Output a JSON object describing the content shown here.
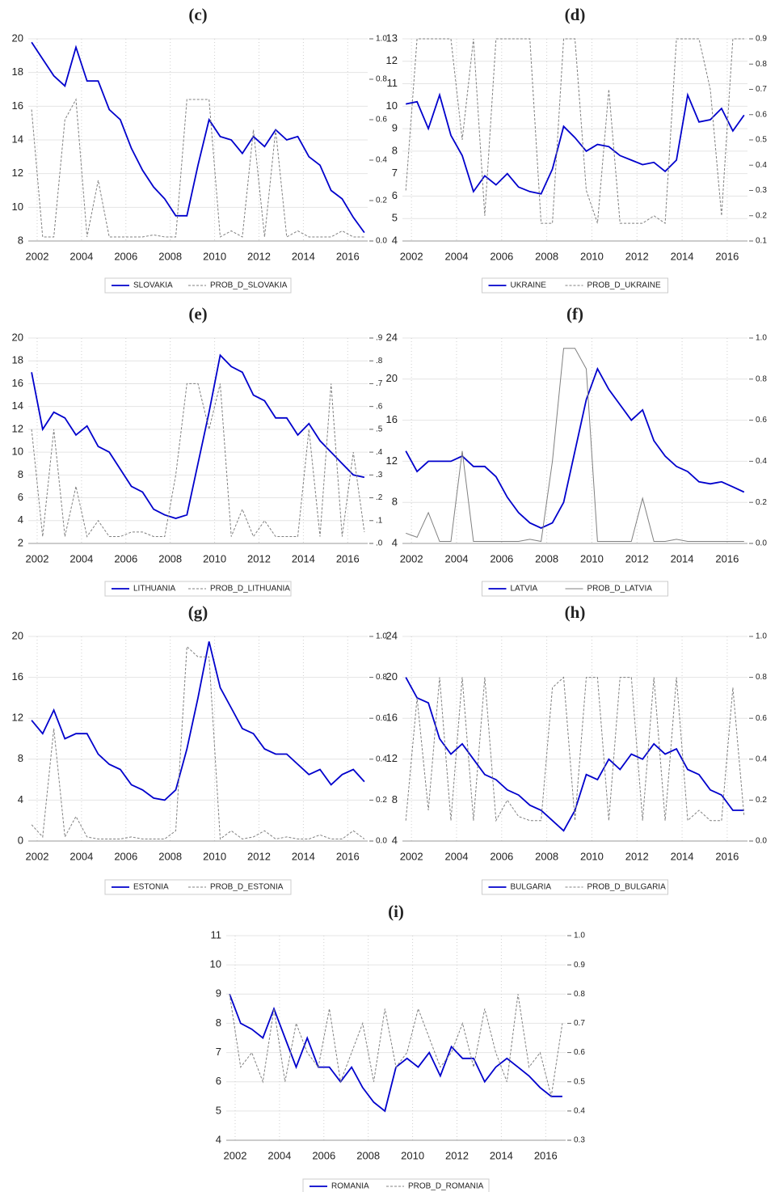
{
  "chart_data": [
    {
      "type": "line",
      "title": "(c)",
      "x": [
        2001.75,
        2002.25,
        2002.75,
        2003.25,
        2003.75,
        2004.25,
        2004.75,
        2005.25,
        2005.75,
        2006.25,
        2006.75,
        2007.25,
        2007.75,
        2008.25,
        2008.75,
        2009.25,
        2009.75,
        2010.25,
        2010.75,
        2011.25,
        2011.75,
        2012.25,
        2012.75,
        2013.25,
        2013.75,
        2014.25,
        2014.75,
        2015.25,
        2015.75,
        2016.25,
        2016.75
      ],
      "xlim": [
        2001.6,
        2016.9
      ],
      "xticks": [
        2002,
        2004,
        2006,
        2008,
        2010,
        2012,
        2014,
        2016
      ],
      "ylim": [
        8,
        20
      ],
      "yticks": [
        8,
        10,
        12,
        14,
        16,
        18,
        20
      ],
      "y2lim": [
        0,
        1
      ],
      "y2ticks": [
        {
          "value": 0,
          "label": "0.0"
        },
        0.2,
        0.4,
        0.6,
        0.8,
        {
          "value": 1,
          "label": "1.0"
        }
      ],
      "grid": true,
      "series": [
        {
          "name": "SLOVAKIA",
          "color": "#0000cc",
          "values": [
            19.8,
            18.8,
            17.8,
            17.2,
            19.5,
            17.5,
            17.5,
            15.8,
            15.2,
            13.5,
            12.2,
            11.2,
            10.5,
            9.5,
            9.5,
            12.5,
            15.2,
            14.2,
            14,
            13.2,
            14.2,
            13.6,
            14.6,
            14,
            14.2,
            13,
            12.5,
            11,
            10.5,
            9.4,
            8.5
          ]
        },
        {
          "name": "PROB_D_SLOVAKIA",
          "color": "#808080",
          "dashed": true,
          "axis": "y2",
          "values": [
            0.65,
            0.02,
            0.02,
            0.6,
            0.7,
            0.02,
            0.3,
            0.02,
            0.02,
            0.02,
            0.02,
            0.03,
            0.02,
            0.02,
            0.7,
            0.7,
            0.7,
            0.02,
            0.05,
            0.02,
            0.55,
            0.02,
            0.55,
            0.02,
            0.05,
            0.02,
            0.02,
            0.02,
            0.05,
            0.02,
            0.02
          ]
        }
      ]
    },
    {
      "type": "line",
      "title": "(d)",
      "x": [
        2001.75,
        2002.25,
        2002.75,
        2003.25,
        2003.75,
        2004.25,
        2004.75,
        2005.25,
        2005.75,
        2006.25,
        2006.75,
        2007.25,
        2007.75,
        2008.25,
        2008.75,
        2009.25,
        2009.75,
        2010.25,
        2010.75,
        2011.25,
        2011.75,
        2012.25,
        2012.75,
        2013.25,
        2013.75,
        2014.25,
        2014.75,
        2015.25,
        2015.75,
        2016.25,
        2016.75
      ],
      "xlim": [
        2001.6,
        2016.9
      ],
      "xticks": [
        2002,
        2004,
        2006,
        2008,
        2010,
        2012,
        2014,
        2016
      ],
      "ylim": [
        4,
        13
      ],
      "yticks": [
        4,
        5,
        6,
        7,
        8,
        9,
        10,
        11,
        12,
        13
      ],
      "y2lim": [
        0.1,
        0.9
      ],
      "y2ticks": [
        0.1,
        0.2,
        0.3,
        0.4,
        0.5,
        0.6,
        0.7,
        0.8,
        0.9
      ],
      "grid": true,
      "series": [
        {
          "name": "UKRAINE",
          "color": "#0000cc",
          "values": [
            10.1,
            10.2,
            9,
            10.5,
            8.7,
            7.8,
            6.2,
            6.9,
            6.5,
            7,
            6.4,
            6.2,
            6.1,
            7.2,
            9.1,
            8.6,
            8,
            8.3,
            8.2,
            7.8,
            7.6,
            7.4,
            7.5,
            7.1,
            7.6,
            10.5,
            9.3,
            9.4,
            9.9,
            8.9,
            9.6
          ]
        },
        {
          "name": "PROB_D_UKRAINE",
          "color": "#808080",
          "dashed": true,
          "axis": "y2",
          "values": [
            0.3,
            0.9,
            0.9,
            0.9,
            0.9,
            0.5,
            0.9,
            0.2,
            0.9,
            0.9,
            0.9,
            0.9,
            0.17,
            0.17,
            0.9,
            0.9,
            0.3,
            0.17,
            0.7,
            0.17,
            0.17,
            0.17,
            0.2,
            0.17,
            0.9,
            0.9,
            0.9,
            0.7,
            0.2,
            0.9,
            0.9
          ]
        }
      ]
    },
    {
      "type": "line",
      "title": "(e)",
      "x": [
        2001.75,
        2002.25,
        2002.75,
        2003.25,
        2003.75,
        2004.25,
        2004.75,
        2005.25,
        2005.75,
        2006.25,
        2006.75,
        2007.25,
        2007.75,
        2008.25,
        2008.75,
        2009.25,
        2009.75,
        2010.25,
        2010.75,
        2011.25,
        2011.75,
        2012.25,
        2012.75,
        2013.25,
        2013.75,
        2014.25,
        2014.75,
        2015.25,
        2015.75,
        2016.25,
        2016.75
      ],
      "xlim": [
        2001.6,
        2016.9
      ],
      "xticks": [
        2002,
        2004,
        2006,
        2008,
        2010,
        2012,
        2014,
        2016
      ],
      "ylim": [
        2,
        20
      ],
      "yticks": [
        2,
        4,
        6,
        8,
        10,
        12,
        14,
        16,
        18,
        20
      ],
      "y2lim": [
        0,
        0.9
      ],
      "y2ticks": [
        {
          "value": 0,
          "label": ".0"
        },
        {
          "value": 0.1,
          "label": ".1"
        },
        {
          "value": 0.2,
          "label": ".2"
        },
        {
          "value": 0.3,
          "label": ".3"
        },
        {
          "value": 0.4,
          "label": ".4"
        },
        {
          "value": 0.5,
          "label": ".5"
        },
        {
          "value": 0.6,
          "label": ".6"
        },
        {
          "value": 0.7,
          "label": ".7"
        },
        {
          "value": 0.8,
          "label": ".8"
        },
        {
          "value": 0.9,
          "label": ".9"
        }
      ],
      "grid": true,
      "series": [
        {
          "name": "LITHUANIA",
          "color": "#0000cc",
          "values": [
            17,
            12,
            13.5,
            13,
            11.5,
            12.3,
            10.5,
            10,
            8.5,
            7,
            6.5,
            5,
            4.5,
            4.2,
            4.5,
            9,
            13.5,
            18.5,
            17.5,
            17,
            15,
            14.5,
            13,
            13,
            11.5,
            12.5,
            11,
            10,
            9,
            8,
            7.8
          ]
        },
        {
          "name": "PROB_D_LITHUANIA",
          "color": "#808080",
          "dashed": true,
          "axis": "y2",
          "values": [
            0.5,
            0.03,
            0.5,
            0.03,
            0.25,
            0.03,
            0.1,
            0.03,
            0.03,
            0.05,
            0.05,
            0.03,
            0.03,
            0.3,
            0.7,
            0.7,
            0.5,
            0.7,
            0.03,
            0.15,
            0.03,
            0.1,
            0.03,
            0.03,
            0.03,
            0.5,
            0.03,
            0.7,
            0.03,
            0.4,
            0.05
          ]
        }
      ]
    },
    {
      "type": "line",
      "title": "(f)",
      "x": [
        2001.75,
        2002.25,
        2002.75,
        2003.25,
        2003.75,
        2004.25,
        2004.75,
        2005.25,
        2005.75,
        2006.25,
        2006.75,
        2007.25,
        2007.75,
        2008.25,
        2008.75,
        2009.25,
        2009.75,
        2010.25,
        2010.75,
        2011.25,
        2011.75,
        2012.25,
        2012.75,
        2013.25,
        2013.75,
        2014.25,
        2014.75,
        2015.25,
        2015.75,
        2016.25,
        2016.75
      ],
      "xlim": [
        2001.6,
        2016.9
      ],
      "xticks": [
        2002,
        2004,
        2006,
        2008,
        2010,
        2012,
        2014,
        2016
      ],
      "ylim": [
        4,
        24
      ],
      "yticks": [
        4,
        8,
        12,
        16,
        20,
        24
      ],
      "y2lim": [
        0,
        1
      ],
      "y2ticks": [
        {
          "value": 0,
          "label": "0.0"
        },
        0.2,
        0.4,
        0.6,
        0.8,
        {
          "value": 1,
          "label": "1.0"
        }
      ],
      "grid": true,
      "series": [
        {
          "name": "LATVIA",
          "color": "#0000cc",
          "values": [
            13,
            11,
            12,
            12,
            12,
            12.5,
            11.5,
            11.5,
            10.5,
            8.5,
            7,
            6,
            5.5,
            6,
            8,
            13,
            18,
            21,
            19,
            17.5,
            16,
            17,
            14,
            12.5,
            11.5,
            11,
            10,
            9.8,
            10,
            9.5,
            9
          ]
        },
        {
          "name": "PROB_D_LATVIA",
          "color": "#808080",
          "dashed": false,
          "axis": "y2",
          "values": [
            0.05,
            0.03,
            0.15,
            0.01,
            0.01,
            0.45,
            0.01,
            0.01,
            0.01,
            0.01,
            0.01,
            0.02,
            0.01,
            0.4,
            0.95,
            0.95,
            0.85,
            0.01,
            0.01,
            0.01,
            0.01,
            0.22,
            0.01,
            0.01,
            0.02,
            0.01,
            0.01,
            0.01,
            0.01,
            0.01,
            0.01
          ]
        }
      ]
    },
    {
      "type": "line",
      "title": "(g)",
      "x": [
        2001.75,
        2002.25,
        2002.75,
        2003.25,
        2003.75,
        2004.25,
        2004.75,
        2005.25,
        2005.75,
        2006.25,
        2006.75,
        2007.25,
        2007.75,
        2008.25,
        2008.75,
        2009.25,
        2009.75,
        2010.25,
        2010.75,
        2011.25,
        2011.75,
        2012.25,
        2012.75,
        2013.25,
        2013.75,
        2014.25,
        2014.75,
        2015.25,
        2015.75,
        2016.25,
        2016.75
      ],
      "xlim": [
        2001.6,
        2016.9
      ],
      "xticks": [
        2002,
        2004,
        2006,
        2008,
        2010,
        2012,
        2014,
        2016
      ],
      "ylim": [
        0,
        20
      ],
      "yticks": [
        0,
        4,
        8,
        12,
        16,
        20
      ],
      "y2lim": [
        0,
        1
      ],
      "y2ticks": [
        {
          "value": 0,
          "label": "0.0"
        },
        0.2,
        0.4,
        0.6,
        0.8,
        {
          "value": 1,
          "label": "1.0"
        }
      ],
      "grid": true,
      "series": [
        {
          "name": "ESTONIA",
          "color": "#0000cc",
          "values": [
            11.8,
            10.5,
            12.8,
            10,
            10.5,
            10.5,
            8.5,
            7.5,
            7,
            5.5,
            5,
            4.2,
            4,
            5,
            9,
            14,
            19.5,
            15,
            13,
            11,
            10.5,
            9,
            8.5,
            8.5,
            7.5,
            6.5,
            7,
            5.5,
            6.5,
            7,
            5.8
          ]
        },
        {
          "name": "PROB_D_ESTONIA",
          "color": "#808080",
          "dashed": true,
          "axis": "y2",
          "values": [
            0.08,
            0.02,
            0.55,
            0.02,
            0.12,
            0.02,
            0.01,
            0.01,
            0.01,
            0.02,
            0.01,
            0.01,
            0.01,
            0.05,
            0.95,
            0.9,
            0.9,
            0.01,
            0.05,
            0.01,
            0.02,
            0.05,
            0.01,
            0.02,
            0.01,
            0.01,
            0.03,
            0.01,
            0.01,
            0.05,
            0.01
          ]
        }
      ]
    },
    {
      "type": "line",
      "title": "(h)",
      "x": [
        2001.75,
        2002.25,
        2002.75,
        2003.25,
        2003.75,
        2004.25,
        2004.75,
        2005.25,
        2005.75,
        2006.25,
        2006.75,
        2007.25,
        2007.75,
        2008.25,
        2008.75,
        2009.25,
        2009.75,
        2010.25,
        2010.75,
        2011.25,
        2011.75,
        2012.25,
        2012.75,
        2013.25,
        2013.75,
        2014.25,
        2014.75,
        2015.25,
        2015.75,
        2016.25,
        2016.75
      ],
      "xlim": [
        2001.6,
        2016.9
      ],
      "xticks": [
        2002,
        2004,
        2006,
        2008,
        2010,
        2012,
        2014,
        2016
      ],
      "ylim": [
        4,
        24
      ],
      "yticks": [
        4,
        8,
        12,
        16,
        20,
        24
      ],
      "y2lim": [
        0,
        1
      ],
      "y2ticks": [
        {
          "value": 0,
          "label": "0.0"
        },
        0.2,
        0.4,
        0.6,
        0.8,
        {
          "value": 1,
          "label": "1.0"
        }
      ],
      "grid": true,
      "series": [
        {
          "name": "BULGARIA",
          "color": "#0000cc",
          "values": [
            20,
            18,
            17.5,
            14,
            12.5,
            13.5,
            12,
            10.5,
            10,
            9,
            8.5,
            7.5,
            7,
            6,
            5,
            7,
            10.5,
            10,
            12,
            11,
            12.5,
            12,
            13.5,
            12.5,
            13,
            11,
            10.5,
            9,
            8.5,
            7,
            7
          ]
        },
        {
          "name": "PROB_D_BULGARIA",
          "color": "#808080",
          "dashed": true,
          "axis": "y2",
          "values": [
            0.1,
            0.7,
            0.15,
            0.8,
            0.1,
            0.8,
            0.1,
            0.8,
            0.1,
            0.2,
            0.12,
            0.1,
            0.1,
            0.75,
            0.8,
            0.1,
            0.8,
            0.8,
            0.1,
            0.8,
            0.8,
            0.1,
            0.8,
            0.1,
            0.8,
            0.1,
            0.15,
            0.1,
            0.1,
            0.75,
            0.12
          ]
        }
      ]
    },
    {
      "type": "line",
      "title": "(i)",
      "x": [
        2001.75,
        2002.25,
        2002.75,
        2003.25,
        2003.75,
        2004.25,
        2004.75,
        2005.25,
        2005.75,
        2006.25,
        2006.75,
        2007.25,
        2007.75,
        2008.25,
        2008.75,
        2009.25,
        2009.75,
        2010.25,
        2010.75,
        2011.25,
        2011.75,
        2012.25,
        2012.75,
        2013.25,
        2013.75,
        2014.25,
        2014.75,
        2015.25,
        2015.75,
        2016.25,
        2016.75
      ],
      "xlim": [
        2001.6,
        2016.9
      ],
      "xticks": [
        2002,
        2004,
        2006,
        2008,
        2010,
        2012,
        2014,
        2016
      ],
      "ylim": [
        4,
        11
      ],
      "yticks": [
        4,
        5,
        6,
        7,
        8,
        9,
        10,
        11
      ],
      "y2lim": [
        0.3,
        1
      ],
      "y2ticks": [
        0.3,
        0.4,
        0.5,
        0.6,
        0.7,
        0.8,
        0.9,
        {
          "value": 1,
          "label": "1.0"
        }
      ],
      "grid": true,
      "series": [
        {
          "name": "ROMANIA",
          "color": "#0000cc",
          "values": [
            9,
            8,
            7.8,
            7.5,
            8.5,
            7.5,
            6.5,
            7.5,
            6.5,
            6.5,
            6,
            6.5,
            5.8,
            5.3,
            5,
            6.5,
            6.8,
            6.5,
            7,
            6.2,
            7.2,
            6.8,
            6.8,
            6,
            6.5,
            6.8,
            6.5,
            6.2,
            5.8,
            5.5,
            5.5
          ]
        },
        {
          "name": "PROB_D_ROMANIA",
          "color": "#808080",
          "dashed": true,
          "axis": "y2",
          "values": [
            0.8,
            0.55,
            0.6,
            0.5,
            0.75,
            0.5,
            0.7,
            0.6,
            0.55,
            0.75,
            0.5,
            0.6,
            0.7,
            0.5,
            0.75,
            0.55,
            0.6,
            0.75,
            0.65,
            0.55,
            0.6,
            0.7,
            0.55,
            0.75,
            0.6,
            0.5,
            0.8,
            0.55,
            0.6,
            0.45,
            0.7
          ]
        }
      ]
    }
  ]
}
